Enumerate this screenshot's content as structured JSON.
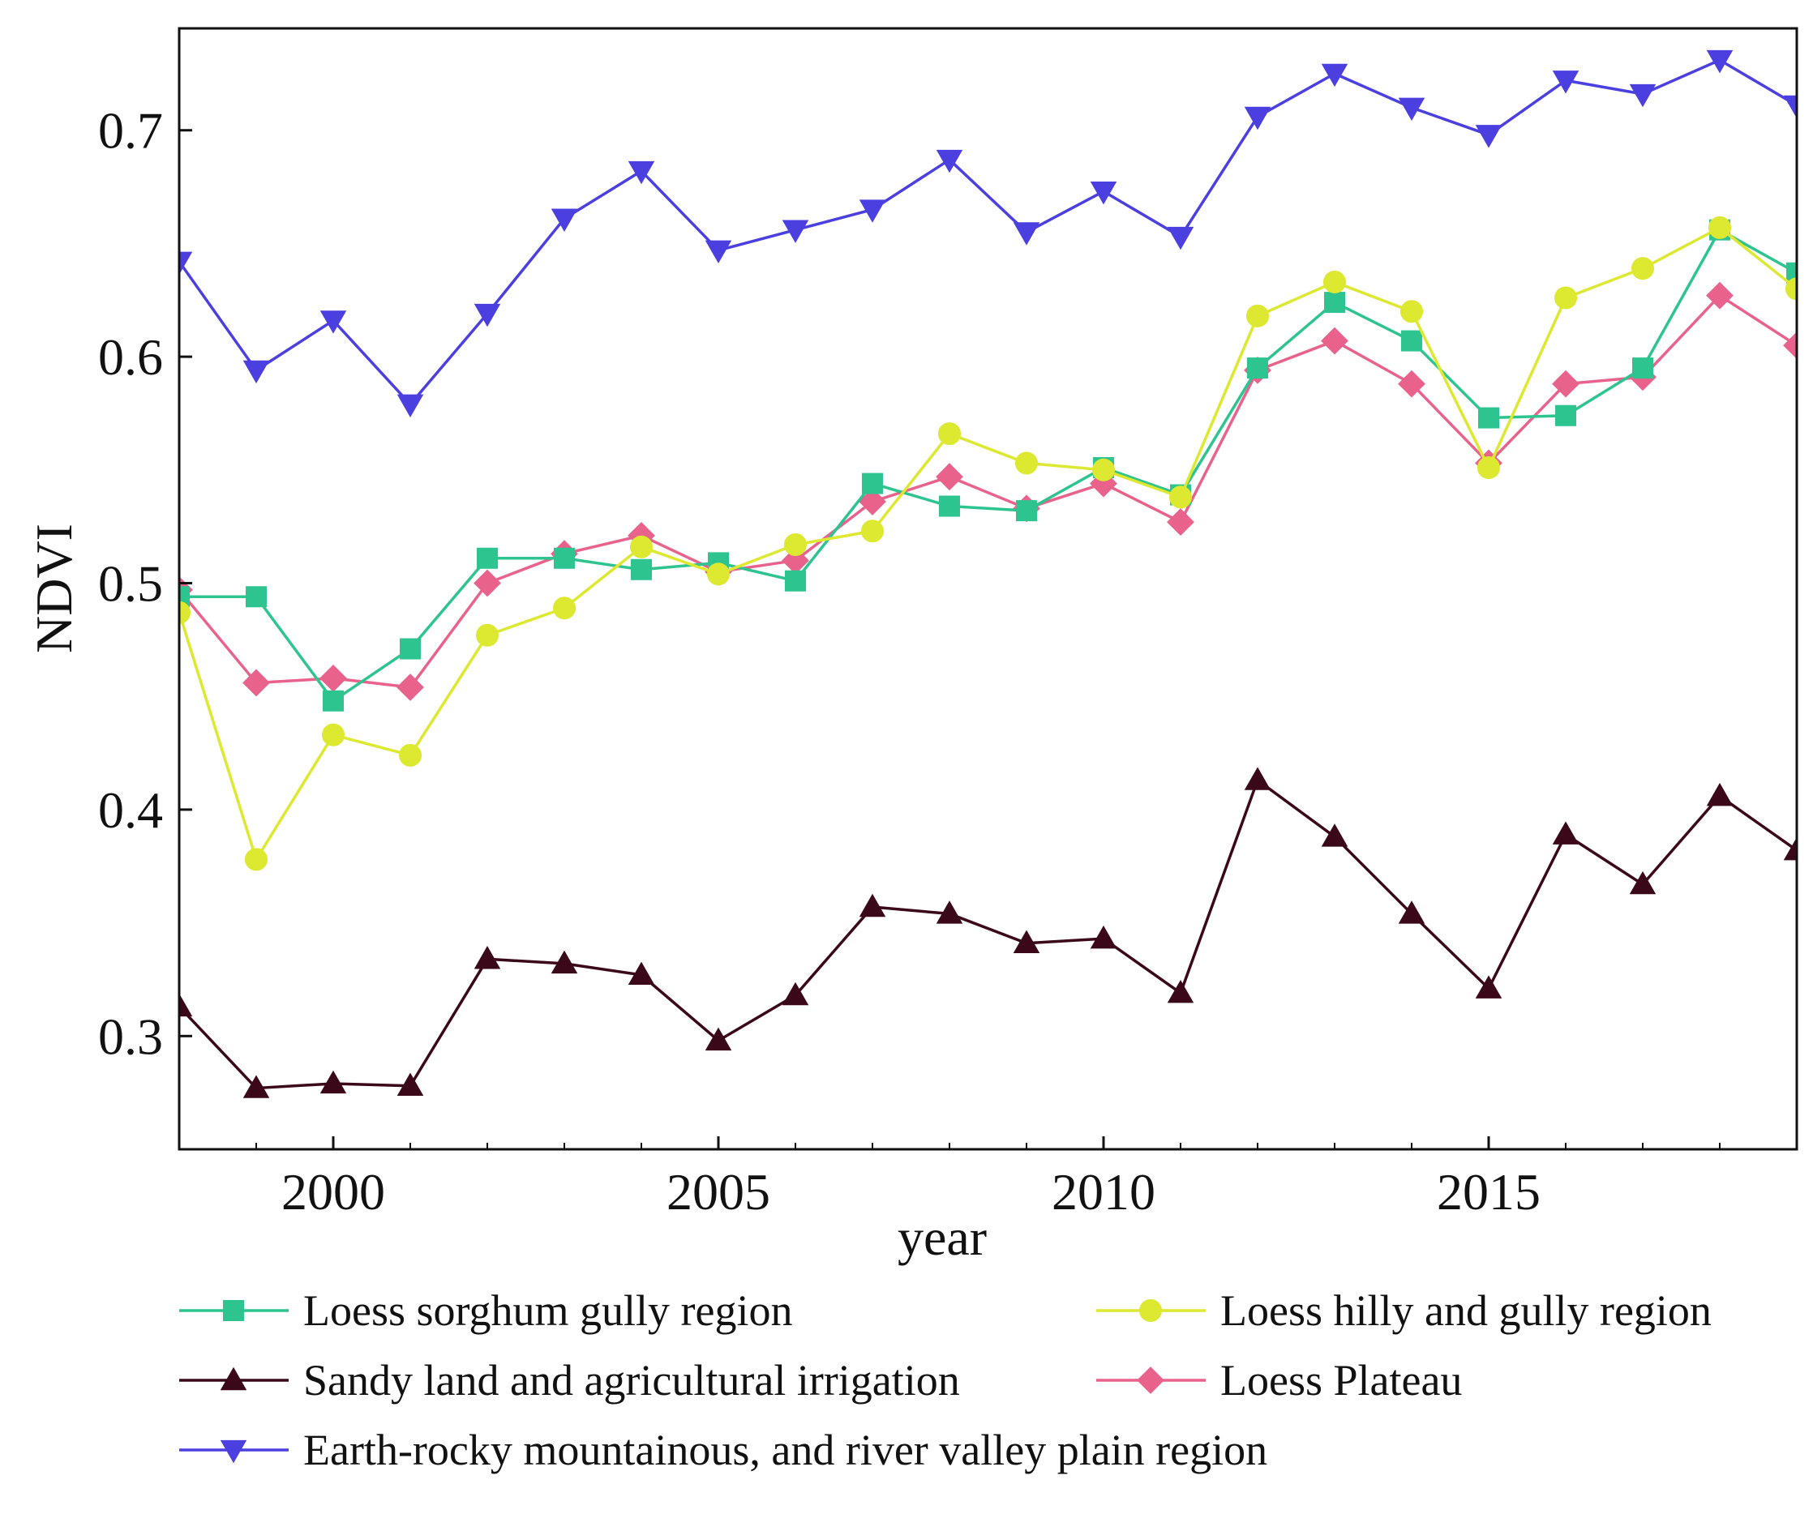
{
  "chart_data": {
    "type": "line",
    "title": "",
    "xlabel": "year",
    "ylabel": "NDVI",
    "xlim": [
      1998,
      2019
    ],
    "ylim": [
      0.25,
      0.745
    ],
    "xticks": [
      2000,
      2005,
      2010,
      2015
    ],
    "xtick_labels": [
      "2000",
      "2005",
      "2010",
      "2015"
    ],
    "yticks": [
      0.3,
      0.4,
      0.5,
      0.6,
      0.7
    ],
    "ytick_labels": [
      "0.3",
      "0.4",
      "0.5",
      "0.6",
      "0.7"
    ],
    "grid": false,
    "legend_position": "bottom",
    "x": [
      1998,
      1999,
      2000,
      2001,
      2002,
      2003,
      2004,
      2005,
      2006,
      2007,
      2008,
      2009,
      2010,
      2011,
      2012,
      2013,
      2014,
      2015,
      2016,
      2017,
      2018,
      2019
    ],
    "series": [
      {
        "name": "Earth-rocky mountainous, and river valley plain region",
        "color": "#4b3fe0",
        "marker": "triangle-down",
        "values": [
          0.642,
          0.594,
          0.616,
          0.579,
          0.619,
          0.661,
          0.682,
          0.647,
          0.656,
          0.665,
          0.687,
          0.655,
          0.673,
          0.653,
          0.706,
          0.725,
          0.71,
          0.698,
          0.722,
          0.716,
          0.731,
          0.711
        ]
      },
      {
        "name": "Loess sorghum gully region",
        "color": "#2ec48f",
        "marker": "square",
        "values": [
          0.494,
          0.494,
          0.448,
          0.471,
          0.511,
          0.511,
          0.506,
          0.509,
          0.501,
          0.544,
          0.534,
          0.532,
          0.551,
          0.539,
          0.595,
          0.624,
          0.607,
          0.573,
          0.574,
          0.595,
          0.656,
          0.637
        ]
      },
      {
        "name": "Loess hilly and gully region",
        "color": "#dde830",
        "marker": "circle",
        "values": [
          0.487,
          0.378,
          0.433,
          0.424,
          0.477,
          0.489,
          0.516,
          0.504,
          0.517,
          0.523,
          0.566,
          0.553,
          0.55,
          0.538,
          0.618,
          0.633,
          0.62,
          0.551,
          0.626,
          0.639,
          0.657,
          0.63
        ]
      },
      {
        "name": "Loess Plateau",
        "color": "#e8628c",
        "marker": "diamond",
        "values": [
          0.497,
          0.456,
          0.458,
          0.454,
          0.5,
          0.513,
          0.521,
          0.505,
          0.51,
          0.536,
          0.547,
          0.533,
          0.544,
          0.527,
          0.594,
          0.607,
          0.588,
          0.553,
          0.588,
          0.591,
          0.627,
          0.605
        ]
      },
      {
        "name": "Sandy land and agricultural irrigation",
        "color": "#3a0818",
        "marker": "triangle-up",
        "values": [
          0.313,
          0.277,
          0.279,
          0.278,
          0.334,
          0.332,
          0.327,
          0.298,
          0.318,
          0.357,
          0.354,
          0.341,
          0.343,
          0.319,
          0.413,
          0.388,
          0.354,
          0.321,
          0.389,
          0.367,
          0.406,
          0.382
        ]
      }
    ],
    "legend": [
      {
        "series": 1,
        "label": "Loess sorghum gully region"
      },
      {
        "series": 2,
        "label": "Loess hilly and gully region"
      },
      {
        "series": 4,
        "label": "Sandy land and agricultural irrigation"
      },
      {
        "series": 3,
        "label": "Loess Plateau"
      },
      {
        "series": 0,
        "label": "Earth-rocky mountainous, and river valley plain region"
      }
    ]
  }
}
